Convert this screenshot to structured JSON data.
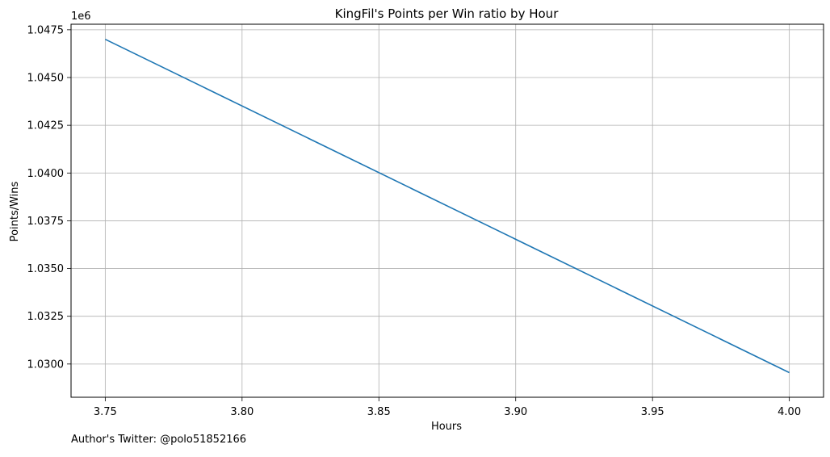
{
  "chart_data": {
    "type": "line",
    "title": "KingFil's Points per Win ratio by Hour",
    "xlabel": "Hours",
    "ylabel": "Points/Wins",
    "y_offset_label": "1e6",
    "xlim": [
      3.7375,
      4.0125
    ],
    "ylim": [
      1.02826,
      1.04779
    ],
    "x_ticks": [
      3.75,
      3.8,
      3.85,
      3.9,
      3.95,
      4.0
    ],
    "x_tick_labels": [
      "3.75",
      "3.80",
      "3.85",
      "3.90",
      "3.95",
      "4.00"
    ],
    "y_ticks": [
      1.03,
      1.0325,
      1.035,
      1.0375,
      1.04,
      1.0425,
      1.045,
      1.0475
    ],
    "y_tick_labels": [
      "1.0300",
      "1.0325",
      "1.0350",
      "1.0375",
      "1.0400",
      "1.0425",
      "1.0450",
      "1.0475"
    ],
    "grid": true,
    "series": [
      {
        "color": "#1f77b4",
        "x": [
          3.75,
          4.0
        ],
        "y": [
          1.047,
          1.02955
        ]
      }
    ]
  },
  "footer": {
    "note": "Author's Twitter: @polo51852166"
  }
}
